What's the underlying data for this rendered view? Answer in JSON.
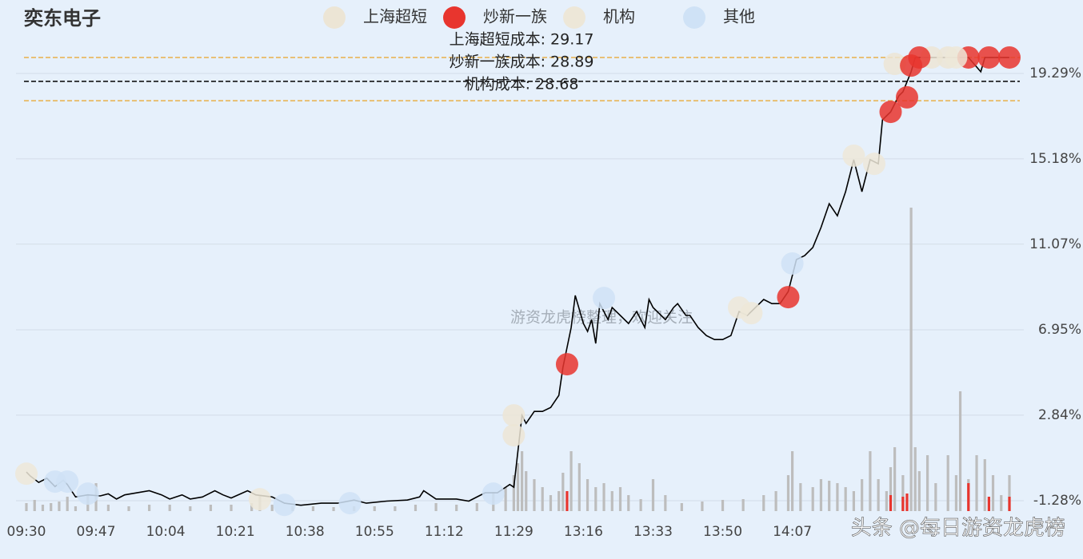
{
  "chart_data": {
    "type": "line",
    "title": "奕东电子",
    "watermarks": [
      "游资龙虎榜整理，欢迎关注",
      "头条 @每日游资龙虎榜"
    ],
    "xlim": [
      0,
      240
    ],
    "xticks": [
      {
        "value": 0,
        "label": "09:30"
      },
      {
        "value": 17,
        "label": "09:47"
      },
      {
        "value": 34,
        "label": "10:04"
      },
      {
        "value": 51,
        "label": "10:21"
      },
      {
        "value": 68,
        "label": "10:38"
      },
      {
        "value": 85,
        "label": "10:55"
      },
      {
        "value": 102,
        "label": "11:12"
      },
      {
        "value": 119,
        "label": "11:29"
      },
      {
        "value": 136,
        "label": "13:16"
      },
      {
        "value": 153,
        "label": "13:33"
      },
      {
        "value": 170,
        "label": "13:50"
      },
      {
        "value": 187,
        "label": "14:07"
      }
    ],
    "ylim": [
      -1.78,
      20.52
    ],
    "yticks": [
      {
        "value": 19.29,
        "label": "19.29%"
      },
      {
        "value": 15.18,
        "label": "15.18%"
      },
      {
        "value": 11.07,
        "label": "11.07%"
      },
      {
        "value": 6.95,
        "label": "6.95%"
      },
      {
        "value": 2.84,
        "label": "2.84%"
      },
      {
        "value": -1.28,
        "label": "-1.28%"
      }
    ],
    "grid": true,
    "series": [
      {
        "color": "#000000",
        "x": [
          0,
          1,
          3,
          5,
          7,
          9,
          10,
          12,
          15,
          18,
          20,
          22,
          24,
          27,
          30,
          33,
          35,
          38,
          40,
          43,
          46,
          48,
          50,
          54,
          56,
          60,
          63,
          67,
          72,
          76,
          80,
          83,
          88,
          93,
          96,
          97,
          100,
          105,
          108,
          112,
          115,
          118,
          119,
          121,
          122,
          124,
          126,
          128,
          130,
          131,
          133,
          134,
          136,
          137,
          138,
          139,
          140,
          142,
          143,
          145,
          147,
          149,
          151,
          152,
          153,
          156,
          158,
          159,
          161,
          162,
          164,
          166,
          168,
          170,
          172,
          174,
          176,
          178,
          180,
          182,
          184,
          186,
          187,
          188,
          190,
          192,
          194,
          196,
          198,
          200,
          202,
          204,
          206,
          208,
          209,
          211,
          213,
          214,
          216,
          217,
          220,
          225,
          230,
          233,
          234,
          240
        ],
        "values": [
          0.1,
          -0.1,
          -0.4,
          -0.2,
          -0.6,
          -0.3,
          -0.5,
          -1.1,
          -1.0,
          -1.05,
          -0.95,
          -1.2,
          -1.0,
          -0.9,
          -0.8,
          -1.0,
          -1.2,
          -1.0,
          -1.2,
          -1.1,
          -0.8,
          -1.0,
          -1.15,
          -0.8,
          -1.0,
          -1.1,
          -1.4,
          -1.5,
          -1.4,
          -1.4,
          -1.25,
          -1.4,
          -1.3,
          -1.25,
          -1.1,
          -0.8,
          -1.2,
          -1.2,
          -1.3,
          -0.9,
          -0.9,
          -0.5,
          -0.63,
          2.83,
          2.44,
          3.02,
          3.02,
          3.21,
          3.79,
          5.14,
          7.06,
          8.6,
          7.25,
          6.87,
          7.44,
          6.29,
          8.21,
          7.44,
          8.02,
          7.64,
          7.25,
          7.83,
          7.06,
          8.41,
          8.02,
          7.44,
          8.02,
          8.21,
          7.64,
          7.64,
          7.06,
          6.67,
          6.48,
          6.48,
          6.67,
          7.83,
          7.64,
          8.02,
          8.41,
          8.21,
          8.21,
          8.79,
          9.56,
          10.33,
          10.52,
          10.91,
          11.87,
          13.02,
          12.44,
          13.6,
          15.14,
          13.6,
          15.14,
          14.94,
          17.06,
          17.44,
          18.21,
          18.41,
          19.37,
          20.06,
          20.06,
          20.06,
          20.06,
          19.37,
          20.06,
          20.06
        ]
      }
    ],
    "legend_position": "top",
    "trade_groups": [
      {
        "name": "上海超短",
        "color": "#ece5d5",
        "x": [
          119,
          119,
          212,
          221,
          225
        ],
        "values": [
          2.83,
          1.87,
          19.75,
          20.06,
          20.06
        ]
      },
      {
        "name": "炒新一族",
        "color": "#e8352e",
        "x": [
          132,
          186,
          211,
          215,
          216,
          218,
          230,
          235,
          240
        ],
        "values": [
          5.29,
          8.52,
          17.44,
          18.14,
          19.67,
          20.06,
          20.06,
          20.06,
          20.06
        ]
      },
      {
        "name": "机构",
        "color": "#ede7d8",
        "x": [
          0,
          57,
          174,
          177,
          202,
          207,
          227
        ],
        "values": [
          0.02,
          -1.21,
          8.02,
          7.75,
          15.33,
          14.94,
          20.06
        ]
      },
      {
        "name": "其他",
        "color": "#cfe2f6",
        "x": [
          7,
          10,
          15,
          63,
          79,
          114,
          141,
          187
        ],
        "values": [
          -0.36,
          -0.36,
          -0.94,
          -1.48,
          -1.4,
          -0.94,
          8.48,
          10.14
        ]
      }
    ],
    "cost_lines": [
      {
        "label": "上海超短成本: 29.17",
        "value": 20.06,
        "color": "#e8b04a"
      },
      {
        "label": "炒新一族成本: 28.89",
        "value": 18.91,
        "color": "#000000"
      },
      {
        "label": "机构成本: 28.68",
        "value": 17.98,
        "color": "#e8b04a"
      }
    ],
    "volume_lim": [
      0,
      400
    ],
    "volume_bars": [
      {
        "color": "#bdbdbd",
        "x": [
          0,
          2,
          4,
          6,
          8,
          10,
          12,
          15,
          17,
          20,
          25,
          30,
          35,
          40,
          45,
          50,
          55,
          57,
          60,
          65,
          70,
          75,
          80,
          85,
          90,
          95,
          100,
          105,
          110,
          114,
          117,
          119,
          120,
          121,
          122,
          124,
          126,
          128,
          130,
          131,
          133,
          135,
          137,
          139,
          141,
          143,
          145,
          147,
          150,
          153,
          156,
          160,
          165,
          170,
          175,
          180,
          183,
          186,
          187,
          189,
          192,
          194,
          196,
          198,
          200,
          202,
          204,
          206,
          208,
          210,
          211,
          212,
          214,
          216,
          217,
          218,
          220,
          222,
          225,
          227,
          228,
          230,
          232,
          234,
          236,
          238,
          240
        ],
        "values": [
          10,
          14,
          8,
          10,
          12,
          18,
          6,
          20,
          35,
          8,
          6,
          8,
          8,
          6,
          8,
          8,
          10,
          20,
          8,
          6,
          6,
          5,
          6,
          6,
          6,
          8,
          10,
          8,
          10,
          24,
          30,
          45,
          60,
          75,
          50,
          40,
          30,
          20,
          25,
          48,
          75,
          60,
          40,
          30,
          35,
          25,
          30,
          20,
          15,
          40,
          20,
          10,
          12,
          14,
          15,
          20,
          25,
          45,
          75,
          35,
          30,
          40,
          38,
          35,
          30,
          25,
          40,
          75,
          40,
          25,
          55,
          80,
          45,
          380,
          80,
          50,
          70,
          35,
          70,
          45,
          150,
          40,
          70,
          65,
          45,
          20,
          45
        ]
      },
      {
        "color": "#e8352e",
        "x": [
          132,
          211,
          214,
          215,
          230,
          235,
          240
        ],
        "values": [
          25,
          20,
          18,
          22,
          35,
          18,
          18
        ]
      }
    ]
  }
}
